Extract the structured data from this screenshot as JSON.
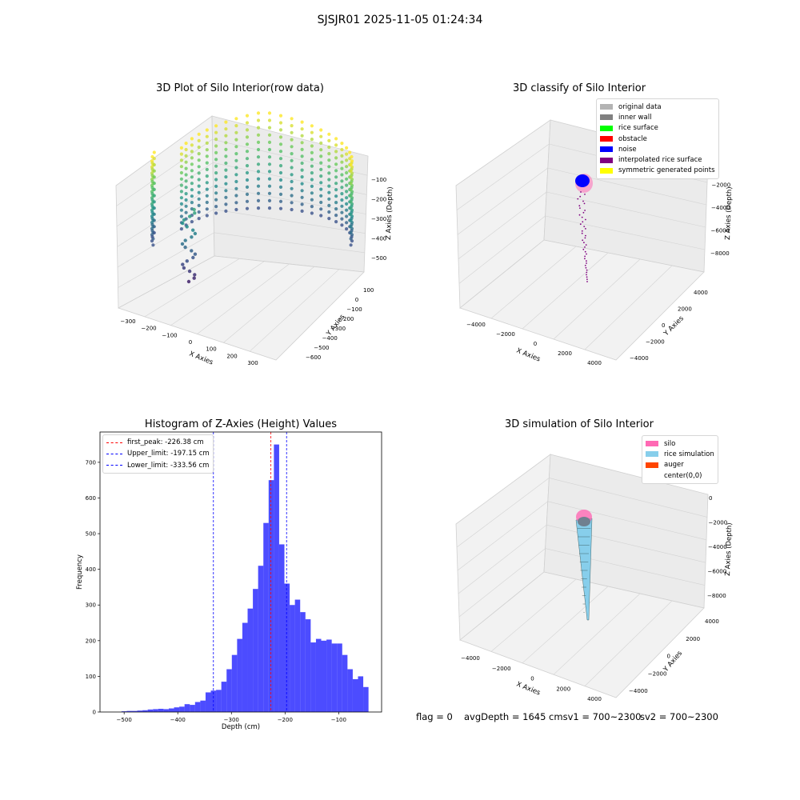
{
  "figure_title": "SJSJR01 2025-11-05 01:24:34",
  "panels": {
    "raw": {
      "title": "3D Plot of Silo Interior(row data)",
      "x_label": "X Axies",
      "y_label": "Y Axies",
      "z_label": "Z Axies (Depth)",
      "x_ticks": [
        "−300",
        "−200",
        "−100",
        "0",
        "100",
        "200",
        "300"
      ],
      "y_ticks": [
        "100",
        "0",
        "−100",
        "−200",
        "−300",
        "−400",
        "−500",
        "−600"
      ],
      "z_ticks": [
        "−100",
        "−200",
        "−300",
        "−400",
        "−500"
      ]
    },
    "classify": {
      "title": "3D classify of Silo Interior",
      "x_label": "X Axies",
      "y_label": "Y Axies",
      "z_label": "Z Axies (Depth)",
      "x_ticks": [
        "−4000",
        "−2000",
        "0",
        "2000",
        "4000"
      ],
      "y_ticks": [
        "4000",
        "2000",
        "0",
        "−2000",
        "−4000"
      ],
      "z_ticks": [
        "0",
        "−2000",
        "−4000",
        "−6000",
        "−8000"
      ],
      "legend": [
        {
          "label": "original data",
          "color": "#b3b3b3"
        },
        {
          "label": "inner wall",
          "color": "#808080"
        },
        {
          "label": "rice surface",
          "color": "#00ff00"
        },
        {
          "label": "obstacle",
          "color": "#ff0000"
        },
        {
          "label": "noise",
          "color": "#0000ff"
        },
        {
          "label": "interpolated rice surface",
          "color": "#800080"
        },
        {
          "label": "symmetric generated points",
          "color": "#ffff00"
        }
      ]
    },
    "hist": {
      "title": "Histogram of Z-Axies (Height) Values",
      "x_label": "Depth (cm)",
      "y_label": "Frequency",
      "legend": [
        {
          "label": "first_peak: -226.38 cm",
          "color": "#ff0000"
        },
        {
          "label": "Upper_limit: -197.15 cm",
          "color": "#0000ff"
        },
        {
          "label": "Lower_limit: -333.56 cm",
          "color": "#0000ff"
        }
      ]
    },
    "sim": {
      "title": "3D simulation of Silo Interior",
      "x_label": "X Axies",
      "y_label": "Y Axies",
      "z_label": "Z Axies (Depth)",
      "x_ticks": [
        "−4000",
        "−2000",
        "0",
        "2000",
        "4000"
      ],
      "y_ticks": [
        "4000",
        "2000",
        "0",
        "−2000",
        "−4000"
      ],
      "z_ticks": [
        "0",
        "−2000",
        "−4000",
        "−6000",
        "−8000"
      ],
      "legend": [
        {
          "label": "silo",
          "color": "#ff69b4"
        },
        {
          "label": "rice simulation",
          "color": "#87ceeb"
        },
        {
          "label": "auger",
          "color": "#ff4500"
        },
        {
          "label": "center(0,0)",
          "color": "#ffffff"
        }
      ]
    }
  },
  "status": {
    "flag": "flag = 0",
    "avg": "avgDepth = 1645 cmsv1 = 700~2300",
    "sv2": "sv2 = 700~2300"
  },
  "chart_data": [
    {
      "type": "scatter",
      "title": "3D Plot of Silo Interior(row data)",
      "xlabel": "X Axies",
      "ylabel": "Y Axies",
      "zlabel": "Z Axies (Depth)",
      "xlim": [
        -340,
        340
      ],
      "ylim": [
        -650,
        150
      ],
      "zlim": [
        -560,
        -60
      ],
      "colormap": "viridis"
    },
    {
      "type": "scatter",
      "title": "3D classify of Silo Interior",
      "xlabel": "X Axies",
      "ylabel": "Y Axies",
      "zlabel": "Z Axies (Depth)",
      "xlim": [
        -4500,
        4500
      ],
      "ylim": [
        -4500,
        4500
      ],
      "zlim": [
        -9000,
        800
      ],
      "legend_position": "upper right"
    },
    {
      "type": "bar",
      "title": "Histogram of Z-Axies (Height) Values",
      "xlabel": "Depth (cm)",
      "ylabel": "Frequency",
      "xlim": [
        -545,
        -20
      ],
      "ylim": [
        0,
        785
      ],
      "x_ticks": [
        -500,
        -400,
        -300,
        -200,
        -100
      ],
      "y_ticks": [
        0,
        100,
        200,
        300,
        400,
        500,
        600,
        700
      ],
      "bin_start": -505,
      "bin_width": 9.8,
      "values": [
        2,
        3,
        3,
        4,
        5,
        7,
        8,
        9,
        8,
        10,
        13,
        15,
        22,
        20,
        28,
        32,
        55,
        60,
        62,
        85,
        120,
        160,
        205,
        250,
        290,
        345,
        410,
        530,
        650,
        750,
        470,
        360,
        300,
        315,
        280,
        260,
        195,
        205,
        200,
        203,
        192,
        192,
        160,
        120,
        92,
        100,
        70
      ],
      "vlines": [
        {
          "name": "first_peak",
          "value": -226.38,
          "color": "#ff0000"
        },
        {
          "name": "Upper_limit",
          "value": -197.15,
          "color": "#0000ff"
        },
        {
          "name": "Lower_limit",
          "value": -333.56,
          "color": "#0000ff"
        }
      ],
      "bar_color": "#0000ff",
      "legend_position": "upper left"
    },
    {
      "type": "surface",
      "title": "3D simulation of Silo Interior",
      "xlabel": "X Axies",
      "ylabel": "Y Axies",
      "zlabel": "Z Axies (Depth)",
      "xlim": [
        -4500,
        4500
      ],
      "ylim": [
        -4500,
        4500
      ],
      "zlim": [
        -9000,
        800
      ],
      "legend_position": "upper right"
    }
  ]
}
